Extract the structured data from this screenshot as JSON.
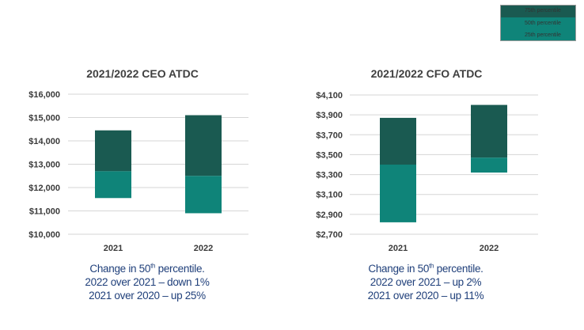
{
  "colors": {
    "upper": "#1a5a51",
    "lower": "#0f8479",
    "grid": "#d6d6d6",
    "caption": "#1f3f7a"
  },
  "legend": {
    "entries": [
      "75th percentile",
      "50th percentile",
      "25th percentile"
    ]
  },
  "chart_data": [
    {
      "type": "bar",
      "title": "2021/2022 CEO ATDC",
      "categories": [
        "2021",
        "2022"
      ],
      "ylim": [
        10000,
        16000
      ],
      "yticks": [
        10000,
        11000,
        12000,
        13000,
        14000,
        15000,
        16000
      ],
      "ytick_labels": [
        "$10,000",
        "$11,000",
        "$12,000",
        "$13,000",
        "$14,000",
        "$15,000",
        "$16,000"
      ],
      "series": [
        {
          "name": "25th percentile",
          "values": [
            11550,
            10900
          ]
        },
        {
          "name": "50th percentile",
          "values": [
            12700,
            12500
          ]
        },
        {
          "name": "75th percentile",
          "values": [
            14450,
            15100
          ]
        }
      ],
      "grid": true
    },
    {
      "type": "bar",
      "title": "2021/2022 CFO ATDC",
      "categories": [
        "2021",
        "2022"
      ],
      "ylim": [
        2700,
        4100
      ],
      "yticks": [
        2700,
        2900,
        3100,
        3300,
        3500,
        3700,
        3900,
        4100
      ],
      "ytick_labels": [
        "$2,700",
        "$2,900",
        "$3,100",
        "$3,300",
        "$3,500",
        "$3,700",
        "$3,900",
        "$4,100"
      ],
      "series": [
        {
          "name": "25th percentile",
          "values": [
            2820,
            3320
          ]
        },
        {
          "name": "50th percentile",
          "values": [
            3400,
            3470
          ]
        },
        {
          "name": "75th percentile",
          "values": [
            3870,
            4000
          ]
        }
      ],
      "grid": true
    }
  ],
  "captions": [
    {
      "line1_pre": "Change in 50",
      "line1_sup": "th",
      "line1_post": " percentile.",
      "line2": "2022 over 2021 – down 1%",
      "line3": "2021 over 2020 – up 25%"
    },
    {
      "line1_pre": "Change in 50",
      "line1_sup": "th",
      "line1_post": " percentile.",
      "line2": "2022 over 2021 – up 2%",
      "line3": "2021 over 2020 – up 11%"
    }
  ]
}
